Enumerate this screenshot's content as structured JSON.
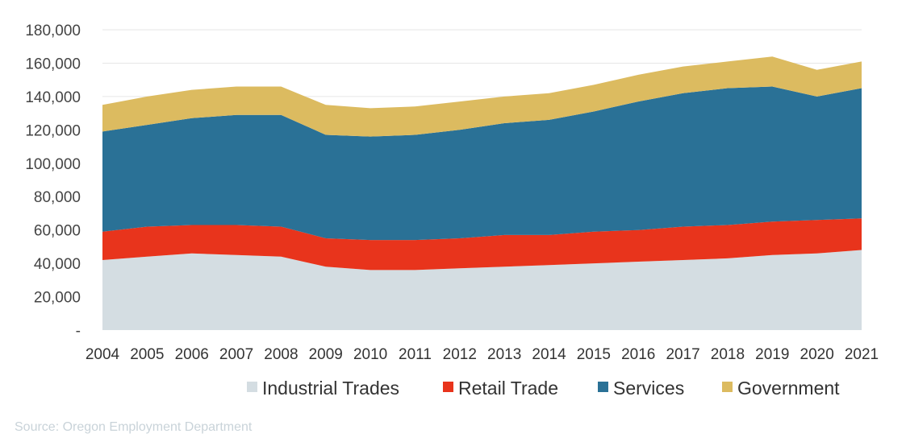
{
  "chart_data": {
    "type": "area",
    "stacked": true,
    "categories": [
      "2004",
      "2005",
      "2006",
      "2007",
      "2008",
      "2009",
      "2010",
      "2011",
      "2012",
      "2013",
      "2014",
      "2015",
      "2016",
      "2017",
      "2018",
      "2019",
      "2020",
      "2021"
    ],
    "series": [
      {
        "name": "Industrial Trades",
        "color": "#d4dde2",
        "values": [
          42000,
          44000,
          46000,
          45000,
          44000,
          38000,
          36000,
          36000,
          37000,
          38000,
          39000,
          40000,
          41000,
          42000,
          43000,
          45000,
          46000,
          48000
        ]
      },
      {
        "name": "Retail Trade",
        "color": "#e8341c",
        "values": [
          17000,
          18000,
          17000,
          18000,
          18000,
          17000,
          18000,
          18000,
          18000,
          19000,
          18000,
          19000,
          19000,
          20000,
          20000,
          20000,
          20000,
          19000
        ]
      },
      {
        "name": "Services",
        "color": "#2a7196",
        "values": [
          60000,
          61000,
          64000,
          66000,
          67000,
          62000,
          62000,
          63000,
          65000,
          67000,
          69000,
          72000,
          77000,
          80000,
          82000,
          81000,
          74000,
          78000
        ]
      },
      {
        "name": "Government",
        "color": "#dcbb60",
        "values": [
          16000,
          17000,
          17000,
          17000,
          17000,
          18000,
          17000,
          17000,
          17000,
          16000,
          16000,
          16000,
          16000,
          16000,
          16000,
          18000,
          16000,
          16000
        ]
      }
    ],
    "yTickLabels": [
      "-",
      "20,000",
      "40,000",
      "60,000",
      "80,000",
      "100,000",
      "120,000",
      "140,000",
      "160,000",
      "180,000"
    ],
    "ylim": [
      0,
      180000
    ],
    "yTickStep": 20000,
    "grid": true,
    "legend": "bottom",
    "source": "Source: Oregon Employment Department"
  }
}
